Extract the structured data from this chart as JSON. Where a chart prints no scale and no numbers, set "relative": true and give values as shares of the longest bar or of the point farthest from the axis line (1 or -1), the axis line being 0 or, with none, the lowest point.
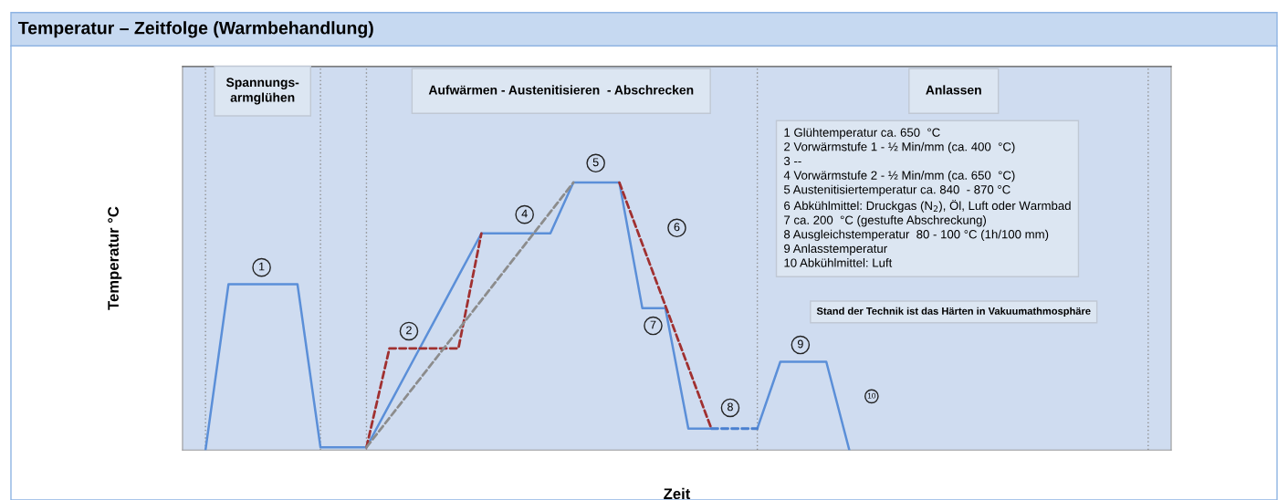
{
  "chart_data": {
    "type": "line",
    "relative": true,
    "title": "Temperatur – Zeitfolge (Warmbehandlung)",
    "xlabel": "Zeit",
    "ylabel": "Temperatur °C",
    "tick_labels": false,
    "grid": false,
    "marker": "none",
    "categories": [
      null,
      null,
      null,
      null,
      null,
      null,
      null,
      null,
      null,
      null,
      null,
      null,
      null,
      null,
      null,
      null,
      null,
      null,
      null,
      null,
      null,
      null,
      null,
      null,
      null,
      null,
      null,
      null,
      null,
      null,
      null,
      null,
      null,
      null,
      null,
      null,
      null,
      null,
      null,
      null,
      null,
      null
    ],
    "series": [
      {
        "color": "#5b8fd8",
        "line_style": "solid",
        "values": [
          0,
          0.62,
          0.62,
          0.62,
          0.62,
          0.01,
          0.01,
          0.01,
          0.17,
          0.33,
          0.49,
          0.65,
          0.81,
          0.81,
          0.81,
          0.81,
          1,
          1,
          1,
          0.53,
          0.53,
          0.08,
          0.08,
          null,
          0.08,
          0.33,
          0.33,
          0.33,
          0,
          null,
          null,
          null,
          null,
          null,
          null,
          null,
          null,
          null,
          null,
          null,
          null,
          null
        ]
      },
      {
        "color": "#4a80d0",
        "line_style": "dashed",
        "values": [
          null,
          null,
          null,
          null,
          null,
          null,
          null,
          null,
          null,
          null,
          null,
          null,
          null,
          null,
          null,
          null,
          null,
          null,
          null,
          null,
          null,
          null,
          0.08,
          0.08,
          0.08,
          null,
          null,
          null,
          null,
          null,
          null,
          null,
          null,
          null,
          null,
          null,
          null,
          null,
          null,
          null,
          null,
          null
        ]
      },
      {
        "color": "#a03030",
        "line_style": "dashed",
        "values": [
          null,
          null,
          null,
          null,
          null,
          null,
          null,
          0.01,
          0.38,
          0.38,
          0.38,
          0.38,
          0.81,
          null,
          null,
          null,
          null,
          null,
          1,
          0.77,
          0.54,
          0.31,
          0.08,
          null,
          null,
          null,
          null,
          null,
          null,
          null,
          null,
          null,
          null,
          null,
          null,
          null,
          null,
          null,
          null,
          null,
          null,
          null
        ]
      },
      {
        "color": "#8c8c8c",
        "line_style": "dashed",
        "values": [
          null,
          null,
          null,
          null,
          null,
          null,
          null,
          0.01,
          0.12,
          0.23,
          0.34,
          0.45,
          0.56,
          0.67,
          0.78,
          0.89,
          1,
          null,
          null,
          null,
          null,
          null,
          null,
          null,
          null,
          null,
          null,
          null,
          null,
          null,
          null,
          null,
          null,
          null,
          null,
          null,
          null,
          null,
          null,
          null,
          null,
          null
        ]
      }
    ],
    "annotations": [
      "Spannungs-\narmglühen",
      "Aufwärmen - Austenitisieren  - Abschrecken",
      "Anlassen",
      "1 Glühtemperatur ca. 650  °C\n2 Vorwärmstufe 1 - ½ Min/mm (ca. 400  °C)\n3 --\n4 Vorwärmstufe 2 - ½ Min/mm (ca. 650  °C)\n5 Austenitisiertemperatur ca. 840  - 870 °C\n6 Abkühlmittel: Druckgas (N$_{2}$), Öl, Luft oder Warmbad\n7 ca. 200  °C (gestufte Abschreckung)\n8 Ausgleichstemperatur  80 - 100 °C (1h/100 mm)\n9 Anlasstemperatur\n10 Abkühlmittel: Luft",
      "Stand der Technik ist das Härten in Vakuumathmosphäre",
      "1",
      "2",
      "4",
      "5",
      "6",
      "7",
      "8",
      "9",
      "10"
    ]
  }
}
